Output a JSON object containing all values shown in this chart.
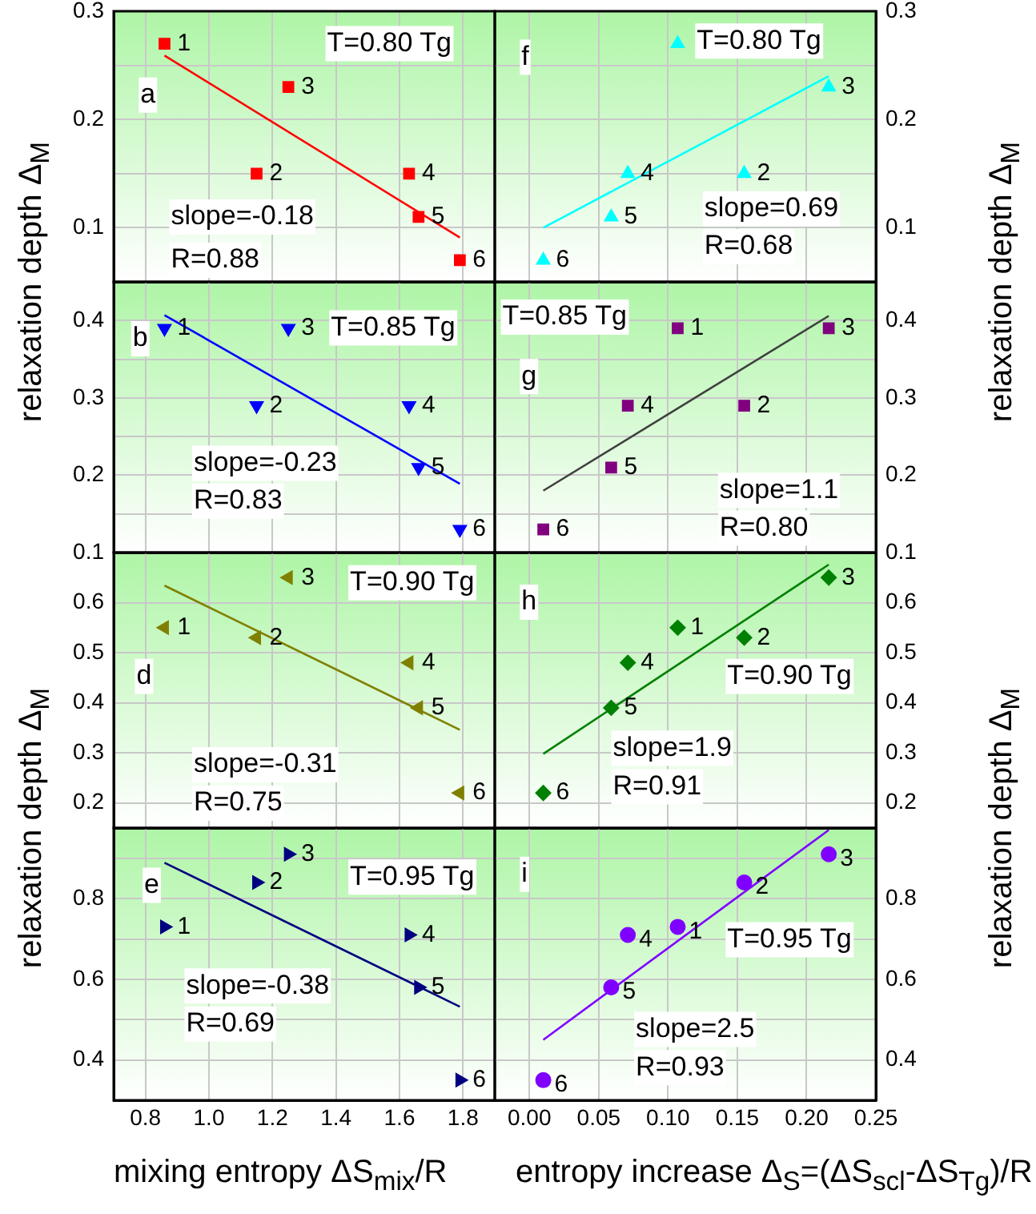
{
  "chart_data": [
    {
      "type": "scatter",
      "xlim": [
        0.7,
        1.9
      ],
      "xticks": [
        0.8,
        1,
        1.2,
        1.4,
        1.6,
        1.8
      ],
      "ylim": [
        0.05,
        0.3
      ],
      "yticks": [
        0.1,
        {
          "value": 0.15,
          "label": null
        },
        0.2,
        {
          "value": 0.25,
          "label": null
        },
        0.3
      ],
      "grid": true,
      "tick_labels": "y",
      "series": [
        {
          "type": "scatter",
          "marker": "square",
          "color": "#ff0000",
          "x": [
            0.86,
            1.15,
            1.25,
            1.63,
            1.66,
            1.79
          ],
          "values": [
            0.27,
            0.15,
            0.23,
            0.15,
            0.11,
            0.07
          ]
        },
        {
          "type": "line",
          "marker": "none",
          "color": "#ff0000",
          "x": [
            0.86,
            1.79
          ],
          "values": [
            0.259,
            0.091
          ]
        }
      ],
      "annotations": [
        "a",
        "T=0.80 Tg",
        "slope=-0.18",
        "R=0.88",
        {
          "text": "1",
          "x": 0.86,
          "y": 0.27
        },
        {
          "text": "2",
          "x": 1.15,
          "y": 0.15
        },
        {
          "text": "3",
          "x": 1.25,
          "y": 0.23
        },
        {
          "text": "4",
          "x": 1.63,
          "y": 0.15
        },
        {
          "text": "5",
          "x": 1.66,
          "y": 0.11
        },
        {
          "text": "6",
          "x": 1.79,
          "y": 0.07
        }
      ]
    },
    {
      "type": "scatter",
      "xlim": [
        -0.025,
        0.25
      ],
      "xticks": [
        0,
        0.05,
        0.1,
        0.15,
        0.2,
        0.25
      ],
      "ylim": [
        0.05,
        0.3
      ],
      "yticks": [
        0.1,
        {
          "value": 0.15,
          "label": null
        },
        0.2,
        {
          "value": 0.25,
          "label": null
        },
        0.3
      ],
      "grid": true,
      "tick_labels": "y",
      "series": [
        {
          "type": "scatter",
          "marker": "triangle",
          "color": "#00ffff",
          "x": [
            0.107,
            0.155,
            0.216,
            0.071,
            0.059,
            0.01
          ],
          "values": [
            0.27,
            0.15,
            0.23,
            0.15,
            0.11,
            0.07
          ]
        },
        {
          "type": "line",
          "marker": "none",
          "color": "#00ffff",
          "x": [
            0.01,
            0.216
          ],
          "values": [
            0.1,
            0.24
          ]
        }
      ],
      "annotations": [
        "f",
        "T=0.80 Tg",
        "slope=0.69",
        "R=0.68",
        {
          "text": "2",
          "x": 0.155,
          "y": 0.15
        },
        {
          "text": "3",
          "x": 0.216,
          "y": 0.23
        },
        {
          "text": "4",
          "x": 0.071,
          "y": 0.15
        },
        {
          "text": "5",
          "x": 0.059,
          "y": 0.11
        },
        {
          "text": "6",
          "x": 0.01,
          "y": 0.07
        }
      ]
    },
    {
      "type": "scatter",
      "ylabel": "relaxation depth Δ$_{M}$",
      "xlim": [
        0.7,
        1.9
      ],
      "xticks": [
        0.8,
        1,
        1.2,
        1.4,
        1.6,
        1.8
      ],
      "ylim": [
        0.1,
        0.45
      ],
      "yticks": [
        0.1,
        {
          "value": 0.15,
          "label": null
        },
        0.2,
        {
          "value": 0.25,
          "label": null
        },
        0.3,
        {
          "value": 0.35,
          "label": null
        },
        0.4
      ],
      "grid": true,
      "tick_labels": "y",
      "series": [
        {
          "type": "scatter",
          "marker": "triangle",
          "color": "#0000ff",
          "x": [
            0.86,
            1.15,
            1.25,
            1.63,
            1.66,
            1.79
          ],
          "values": [
            0.39,
            0.29,
            0.39,
            0.29,
            0.21,
            0.13
          ]
        },
        {
          "type": "line",
          "marker": "none",
          "color": "#0000ff",
          "x": [
            0.86,
            1.79
          ],
          "values": [
            0.407,
            0.189
          ]
        }
      ],
      "annotations": [
        "b",
        "T=0.85 Tg",
        "slope=-0.23",
        "R=0.83",
        {
          "text": "1",
          "x": 0.86,
          "y": 0.39
        },
        {
          "text": "2",
          "x": 1.15,
          "y": 0.29
        },
        {
          "text": "3",
          "x": 1.25,
          "y": 0.39
        },
        {
          "text": "4",
          "x": 1.63,
          "y": 0.29
        },
        {
          "text": "5",
          "x": 1.66,
          "y": 0.21
        },
        {
          "text": "6",
          "x": 1.79,
          "y": 0.13
        }
      ]
    },
    {
      "type": "scatter",
      "ylabel": "relaxation depth Δ$_{M}$",
      "xlim": [
        -0.025,
        0.25
      ],
      "xticks": [
        0,
        0.05,
        0.1,
        0.15,
        0.2,
        0.25
      ],
      "ylim": [
        0.1,
        0.45
      ],
      "yticks": [
        0.1,
        {
          "value": 0.15,
          "label": null
        },
        0.2,
        {
          "value": 0.25,
          "label": null
        },
        0.3,
        {
          "value": 0.35,
          "label": null
        },
        0.4
      ],
      "grid": true,
      "tick_labels": "y",
      "series": [
        {
          "type": "scatter",
          "marker": "square",
          "color": "#800080",
          "x": [
            0.107,
            0.155,
            0.216,
            0.071,
            0.059,
            0.01
          ],
          "values": [
            0.39,
            0.29,
            0.39,
            0.29,
            0.21,
            0.13
          ]
        },
        {
          "type": "line",
          "marker": "none",
          "color": "#404040",
          "x": [
            0.01,
            0.216
          ],
          "values": [
            0.18,
            0.406
          ]
        }
      ],
      "annotations": [
        "g",
        "T=0.85 Tg",
        "slope=1.1",
        "R=0.80",
        {
          "text": "1",
          "x": 0.107,
          "y": 0.39
        },
        {
          "text": "2",
          "x": 0.155,
          "y": 0.29
        },
        {
          "text": "3",
          "x": 0.216,
          "y": 0.39
        },
        {
          "text": "4",
          "x": 0.071,
          "y": 0.29
        },
        {
          "text": "5",
          "x": 0.059,
          "y": 0.21
        },
        {
          "text": "6",
          "x": 0.01,
          "y": 0.13
        }
      ]
    },
    {
      "type": "scatter",
      "xlim": [
        0.7,
        1.9
      ],
      "xticks": [
        0.8,
        1,
        1.2,
        1.4,
        1.6,
        1.8
      ],
      "ylim": [
        0.15,
        0.7
      ],
      "yticks": [
        0.2,
        0.3,
        0.4,
        0.5,
        0.6
      ],
      "grid": true,
      "tick_labels": "y",
      "series": [
        {
          "type": "scatter",
          "marker": "triangle",
          "color": "#808000",
          "x": [
            0.86,
            1.15,
            1.25,
            1.63,
            1.66,
            1.79
          ],
          "values": [
            0.55,
            0.53,
            0.65,
            0.48,
            0.39,
            0.22
          ]
        },
        {
          "type": "line",
          "marker": "none",
          "color": "#808000",
          "x": [
            0.86,
            1.79
          ],
          "values": [
            0.634,
            0.346
          ]
        }
      ],
      "annotations": [
        "d",
        "T=0.90 Tg",
        "slope=-0.31",
        "R=0.75",
        {
          "text": "1",
          "x": 0.86,
          "y": 0.55
        },
        {
          "text": "2",
          "x": 1.15,
          "y": 0.53
        },
        {
          "text": "3",
          "x": 1.25,
          "y": 0.65
        },
        {
          "text": "4",
          "x": 1.63,
          "y": 0.48
        },
        {
          "text": "5",
          "x": 1.66,
          "y": 0.39
        },
        {
          "text": "6",
          "x": 1.79,
          "y": 0.22
        }
      ]
    },
    {
      "type": "scatter",
      "xlim": [
        -0.025,
        0.25
      ],
      "xticks": [
        0,
        0.05,
        0.1,
        0.15,
        0.2,
        0.25
      ],
      "ylim": [
        0.15,
        0.7
      ],
      "yticks": [
        0.2,
        0.3,
        0.4,
        0.5,
        0.6
      ],
      "grid": true,
      "tick_labels": "y",
      "series": [
        {
          "type": "scatter",
          "marker": "diamond",
          "color": "#008000",
          "x": [
            0.107,
            0.155,
            0.216,
            0.071,
            0.059,
            0.01
          ],
          "values": [
            0.55,
            0.53,
            0.65,
            0.48,
            0.39,
            0.22
          ]
        },
        {
          "type": "line",
          "marker": "none",
          "color": "#008000",
          "x": [
            0.01,
            0.216
          ],
          "values": [
            0.298,
            0.676
          ]
        }
      ],
      "annotations": [
        "h",
        "T=0.90 Tg",
        "slope=1.9",
        "R=0.91",
        {
          "text": "1",
          "x": 0.107,
          "y": 0.55
        },
        {
          "text": "2",
          "x": 0.155,
          "y": 0.53
        },
        {
          "text": "3",
          "x": 0.216,
          "y": 0.65
        },
        {
          "text": "4",
          "x": 0.071,
          "y": 0.48
        },
        {
          "text": "5",
          "x": 0.059,
          "y": 0.39
        },
        {
          "text": "6",
          "x": 0.01,
          "y": 0.22
        }
      ]
    },
    {
      "type": "scatter",
      "xlabel": "mixing entropy ΔS$_{mix}$/R",
      "ylabel": "relaxation depth Δ$_{M}$",
      "xlim": [
        0.7,
        1.9
      ],
      "xticks": [
        0.8,
        {
          "value": 1,
          "label": "1.0"
        },
        1.2,
        1.4,
        1.6,
        1.8
      ],
      "ylim": [
        0.3,
        0.975
      ],
      "yticks": [
        0.4,
        {
          "value": 0.5,
          "label": null
        },
        0.6,
        {
          "value": 0.7,
          "label": null
        },
        0.8,
        {
          "value": 0.9,
          "label": null
        }
      ],
      "grid": true,
      "series": [
        {
          "type": "scatter",
          "marker": "triangle",
          "color": "#000080",
          "x": [
            0.86,
            1.15,
            1.25,
            1.63,
            1.66,
            1.79
          ],
          "values": [
            0.73,
            0.84,
            0.91,
            0.71,
            0.58,
            0.35
          ]
        },
        {
          "type": "line",
          "marker": "none",
          "color": "#000080",
          "x": [
            0.86,
            1.79
          ],
          "values": [
            0.889,
            0.532
          ]
        }
      ],
      "annotations": [
        "e",
        "T=0.95 Tg",
        "slope=-0.38",
        "R=0.69",
        {
          "text": "1",
          "x": 0.86,
          "y": 0.73
        },
        {
          "text": "2",
          "x": 1.15,
          "y": 0.84
        },
        {
          "text": "3",
          "x": 1.25,
          "y": 0.91
        },
        {
          "text": "4",
          "x": 1.63,
          "y": 0.71
        },
        {
          "text": "5",
          "x": 1.66,
          "y": 0.58
        },
        {
          "text": "6",
          "x": 1.79,
          "y": 0.35
        }
      ]
    },
    {
      "type": "scatter",
      "xlabel": "entropy increase Δ$_{S}$=(ΔS$_{scl}$-ΔS$_{Tg}$)/R",
      "ylabel": "relaxation depth Δ$_{M}$",
      "xlim": [
        -0.025,
        0.25
      ],
      "xticks": [
        {
          "value": 0,
          "label": "0.00"
        },
        0.05,
        {
          "value": 0.1,
          "label": "0.10"
        },
        0.15,
        {
          "value": 0.2,
          "label": "0.20"
        },
        0.25
      ],
      "ylim": [
        0.3,
        0.975
      ],
      "yticks": [
        0.4,
        {
          "value": 0.5,
          "label": null
        },
        0.6,
        {
          "value": 0.7,
          "label": null
        },
        0.8,
        {
          "value": 0.9,
          "label": null
        }
      ],
      "grid": true,
      "series": [
        {
          "type": "scatter",
          "marker": "circle",
          "color": "#8000ff",
          "x": [
            0.107,
            0.155,
            0.216,
            0.071,
            0.059,
            0.01
          ],
          "values": [
            0.73,
            0.84,
            0.91,
            0.71,
            0.58,
            0.35
          ]
        },
        {
          "type": "line",
          "marker": "none",
          "color": "#8000ff",
          "x": [
            0.01,
            0.216
          ],
          "values": [
            0.45,
            0.97
          ]
        }
      ],
      "annotations": [
        "i",
        "T=0.95 Tg",
        "slope=2.5",
        "R=0.93",
        {
          "text": "1",
          "x": 0.107,
          "y": 0.73
        },
        {
          "text": "2",
          "x": 0.155,
          "y": 0.84
        },
        {
          "text": "3",
          "x": 0.216,
          "y": 0.91
        },
        {
          "text": "4",
          "x": 0.071,
          "y": 0.71
        },
        {
          "text": "5",
          "x": 0.059,
          "y": 0.58
        },
        {
          "text": "6",
          "x": 0.01,
          "y": 0.35
        }
      ]
    }
  ]
}
